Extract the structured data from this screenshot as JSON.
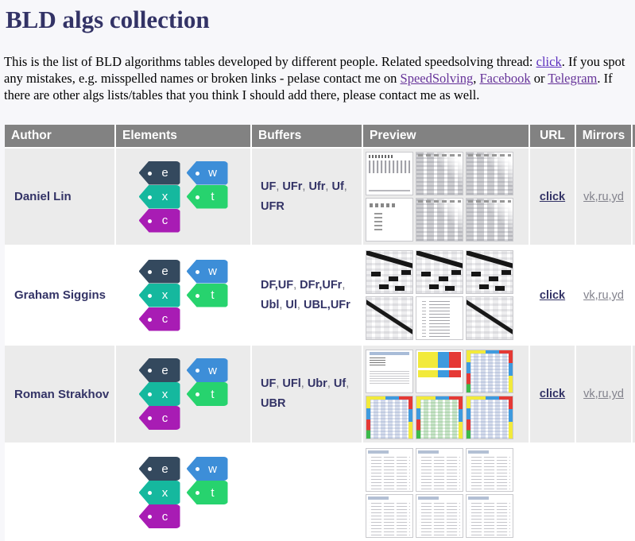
{
  "page": {
    "title": "BLD algs collection"
  },
  "intro": {
    "t1": "This is the list of BLD algorithms tables developed by different people. Related speedsolving thread: ",
    "link_thread": "click",
    "t2": ". If you spot any mistakes, e.g. misspelled names or broken links - pelase contact me on ",
    "link_speedsolving": "SpeedSolving",
    "t3": ", ",
    "link_facebook": "Facebook",
    "t4": " or ",
    "link_telegram": "Telegram",
    "t5": ". If there are other algs lists/tables that you think I should add there, please contact me as well."
  },
  "colors": {
    "page_background": "#f7f7fa",
    "heading_text": "#333366",
    "thread_link": "#5a2dbe",
    "visited_link": "#663399",
    "table_header_bg": "#828282",
    "table_row_alt_bg": "#ebebeb",
    "mirror_link_gray": "#82828c"
  },
  "table": {
    "headers": [
      "Author",
      "Elements",
      "Buffers",
      "Preview",
      "URL",
      "Mirrors"
    ],
    "element_tags": [
      {
        "id": "e",
        "label": "e",
        "color": "#34495e"
      },
      {
        "id": "w",
        "label": "w",
        "color": "#3d8ed8"
      },
      {
        "id": "x",
        "label": "x",
        "color": "#15b89e"
      },
      {
        "id": "t",
        "label": "t",
        "color": "#27d36e"
      },
      {
        "id": "c",
        "label": "c",
        "color": "#a81cb4"
      }
    ],
    "rows": [
      {
        "author": "Daniel Lin",
        "elements": [
          "e",
          "w",
          "x",
          "t",
          "c"
        ],
        "buffers": [
          "UF",
          "UFr",
          "Ufr",
          "Uf",
          "UFR"
        ],
        "preview": [
          "list",
          "grid",
          "grid",
          "sparse",
          "grid",
          "grid"
        ],
        "url_label": "click",
        "mirrors": [
          "vk",
          "ru",
          "yd"
        ]
      },
      {
        "author": "Graham Siggins",
        "elements": [
          "e",
          "w",
          "x",
          "t",
          "c"
        ],
        "buffers": [
          "DF,UF",
          "DFr,UFr",
          "Ubl",
          "Ul",
          "UBL,UFr"
        ],
        "preview": [
          "diag",
          "diag",
          "diag",
          "diagline",
          "textlist",
          "diagline"
        ],
        "url_label": "click",
        "mirrors": [
          "vk",
          "ru",
          "yd"
        ]
      },
      {
        "author": "Roman Strakhov",
        "elements": [
          "e",
          "w",
          "x",
          "t",
          "c"
        ],
        "buffers": [
          "UF",
          "UFl",
          "Ubr",
          "Uf",
          "UBR"
        ],
        "preview": [
          "colorhead",
          "colorbars",
          "colorgrid",
          "colorgrid",
          "colorgreen",
          "colorgrid"
        ],
        "url_label": "click",
        "mirrors": [
          "vk",
          "ru",
          "yd"
        ]
      },
      {
        "author": "",
        "elements": [
          "e",
          "w",
          "x",
          "t",
          "c"
        ],
        "buffers": [],
        "preview": [
          "plainlist",
          "plainlist",
          "plainlist",
          "plainlist",
          "plainlist",
          "plainlist"
        ],
        "url_label": null,
        "mirrors": []
      }
    ]
  }
}
